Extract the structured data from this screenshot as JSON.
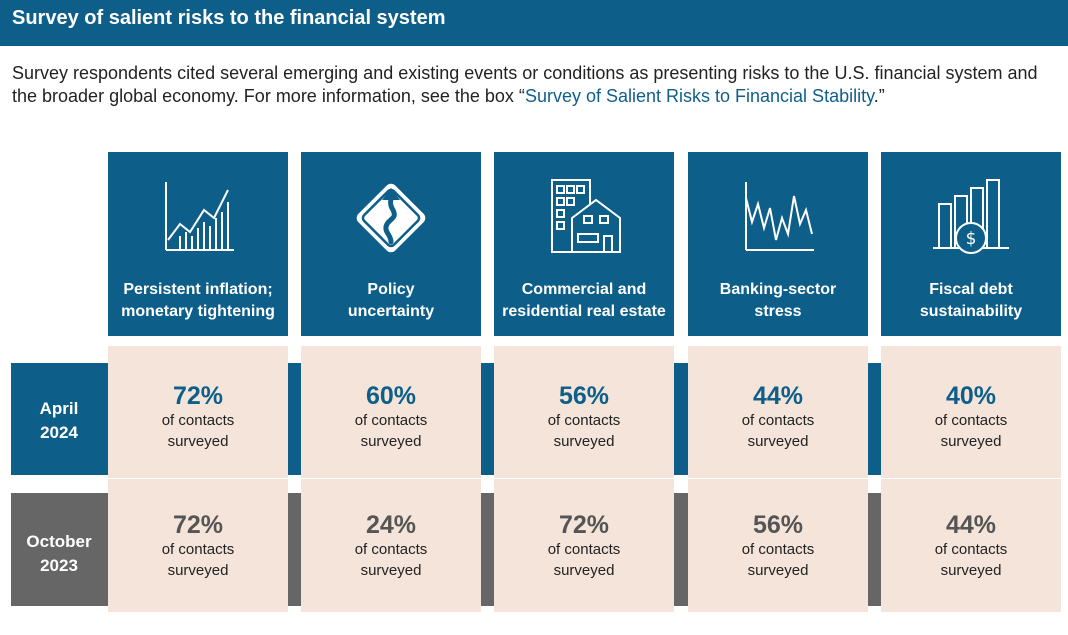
{
  "header": {
    "title": "Survey of salient risks to the financial system"
  },
  "intro": {
    "text_before": "Survey respondents cited several emerging and existing events or conditions as presenting risks to the U.S. financial system and the broader global economy. For more information, see the box “",
    "link": "Survey of Salient Risks to Financial Stability",
    "text_after": ".”"
  },
  "rows": {
    "april": {
      "line1": "April",
      "line2": "2024"
    },
    "october": {
      "line1": "October",
      "line2": "2023"
    }
  },
  "colors": {
    "primary": "#0d5f8a",
    "secondary": "#666666",
    "cell": "#f4e4da"
  },
  "risks": [
    {
      "icon": "rising-chart-icon",
      "label1": "Persistent inflation;",
      "label2": "monetary tightening",
      "april": {
        "pct": "72%",
        "sub1": "of contacts",
        "sub2": "surveyed"
      },
      "october": {
        "pct": "72%",
        "sub1": "of contacts",
        "sub2": "surveyed"
      }
    },
    {
      "icon": "winding-road-sign-icon",
      "label1": "Policy",
      "label2": "uncertainty",
      "april": {
        "pct": "60%",
        "sub1": "of contacts",
        "sub2": "surveyed"
      },
      "october": {
        "pct": "24%",
        "sub1": "of contacts",
        "sub2": "surveyed"
      }
    },
    {
      "icon": "buildings-icon",
      "label1": "Commercial and",
      "label2": "residential real estate",
      "april": {
        "pct": "56%",
        "sub1": "of contacts",
        "sub2": "surveyed"
      },
      "october": {
        "pct": "72%",
        "sub1": "of contacts",
        "sub2": "surveyed"
      }
    },
    {
      "icon": "volatile-line-icon",
      "label1": "Banking-sector",
      "label2": "stress",
      "april": {
        "pct": "44%",
        "sub1": "of contacts",
        "sub2": "surveyed"
      },
      "october": {
        "pct": "56%",
        "sub1": "of contacts",
        "sub2": "surveyed"
      }
    },
    {
      "icon": "dollar-bars-icon",
      "label1": "Fiscal debt",
      "label2": "sustainability",
      "april": {
        "pct": "40%",
        "sub1": "of contacts",
        "sub2": "surveyed"
      },
      "october": {
        "pct": "44%",
        "sub1": "of contacts",
        "sub2": "surveyed"
      }
    }
  ]
}
